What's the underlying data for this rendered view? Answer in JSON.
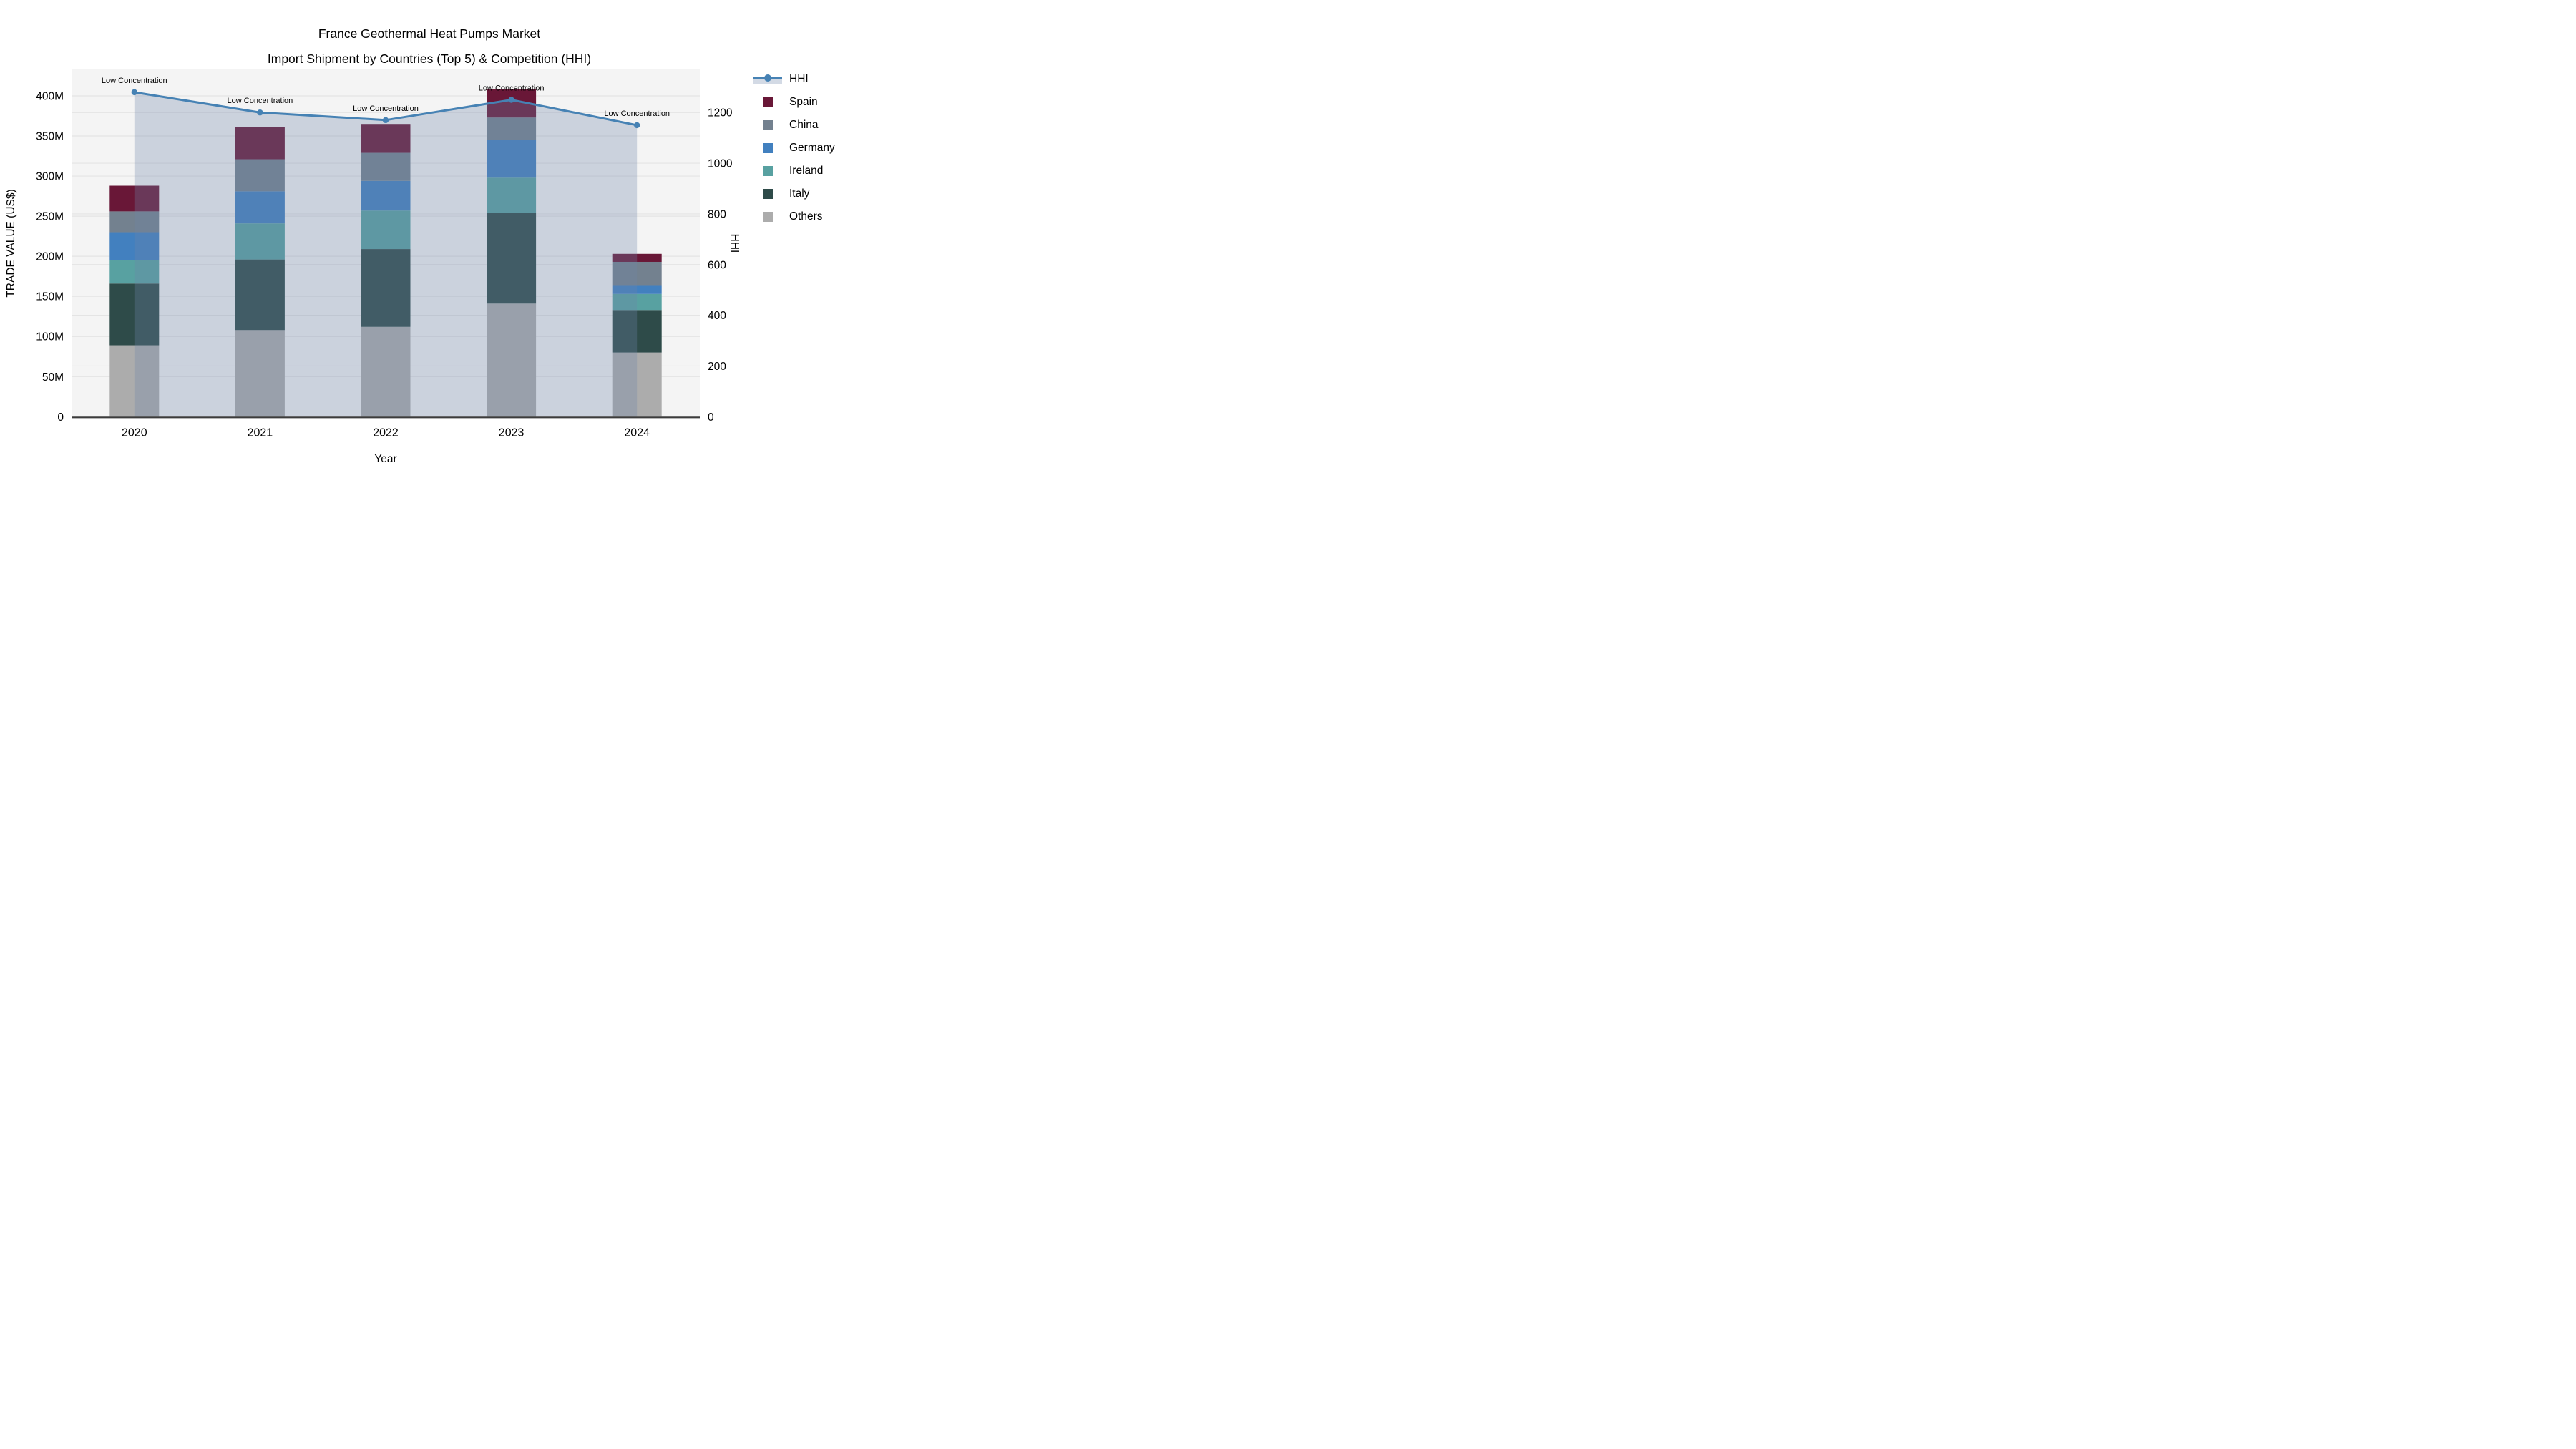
{
  "title": {
    "line1": "France Geothermal Heat Pumps Market",
    "line2": "Import Shipment by Countries (Top 5) & Competition (HHI)"
  },
  "chart_data": {
    "type": "bar",
    "stacked": true,
    "categories": [
      "2020",
      "2021",
      "2022",
      "2023",
      "2024"
    ],
    "series": [
      {
        "name": "Others",
        "values": [
          89,
          108,
          112,
          141,
          80
        ]
      },
      {
        "name": "Italy",
        "values": [
          77,
          88,
          97,
          113,
          53
        ]
      },
      {
        "name": "Ireland",
        "values": [
          29,
          45,
          48,
          44,
          20
        ]
      },
      {
        "name": "Germany",
        "values": [
          35,
          40,
          37,
          47,
          11
        ]
      },
      {
        "name": "China",
        "values": [
          26,
          40,
          35,
          28,
          29
        ]
      },
      {
        "name": "Spain",
        "values": [
          32,
          40,
          36,
          35,
          10
        ]
      }
    ],
    "line_series": {
      "name": "HHI",
      "axis": "right",
      "values": [
        1280,
        1200,
        1170,
        1250,
        1150
      ],
      "has_area_fill": true
    },
    "annotations": [
      "Low Concentration",
      "Low Concentration",
      "Low Concentration",
      "Low Concentration",
      "Low Concentration"
    ],
    "xlabel": "Year",
    "ylabel_left": "TRADE VALUE (US$)",
    "ylabel_right": "HHI",
    "left_ticks": [
      {
        "value": 0,
        "label": "0"
      },
      {
        "value": 50,
        "label": "50M"
      },
      {
        "value": 100,
        "label": "100M"
      },
      {
        "value": 150,
        "label": "150M"
      },
      {
        "value": 200,
        "label": "200M"
      },
      {
        "value": 250,
        "label": "250M"
      },
      {
        "value": 300,
        "label": "300M"
      },
      {
        "value": 350,
        "label": "350M"
      },
      {
        "value": 400,
        "label": "400M"
      }
    ],
    "ylim_left": [
      0,
      433
    ],
    "right_ticks": [
      {
        "value": 0,
        "label": "0"
      },
      {
        "value": 200,
        "label": "200"
      },
      {
        "value": 400,
        "label": "400"
      },
      {
        "value": 600,
        "label": "600"
      },
      {
        "value": 800,
        "label": "800"
      },
      {
        "value": 1000,
        "label": "1000"
      },
      {
        "value": 1200,
        "label": "1200"
      }
    ],
    "ylim_right": [
      0,
      1370
    ],
    "grid": true,
    "legend_position": "right"
  },
  "legend": {
    "items": [
      {
        "label": "HHI",
        "type": "line"
      },
      {
        "label": "Spain",
        "type": "square",
        "color": "#691737"
      },
      {
        "label": "China",
        "type": "square",
        "color": "#73818f"
      },
      {
        "label": "Germany",
        "type": "square",
        "color": "#4280bf"
      },
      {
        "label": "Ireland",
        "type": "square",
        "color": "#58a1a1"
      },
      {
        "label": "Italy",
        "type": "square",
        "color": "#2e4b49"
      },
      {
        "label": "Others",
        "type": "square",
        "color": "#acacac"
      }
    ]
  },
  "colors": {
    "Spain": "#691737",
    "China": "#73818f",
    "Germany": "#4280bf",
    "Ireland": "#58a1a1",
    "Italy": "#2e4b49",
    "Others": "#acacac",
    "hhi_line": "#4682b4",
    "area_fill": "rgba(110,134,168,0.30)",
    "legend_area_band": "#d3dae5",
    "plot_bg": "#f4f4f4",
    "grid_line": "#e4e4e4",
    "axis_line": "#3c3c3c",
    "text": "#000000"
  }
}
